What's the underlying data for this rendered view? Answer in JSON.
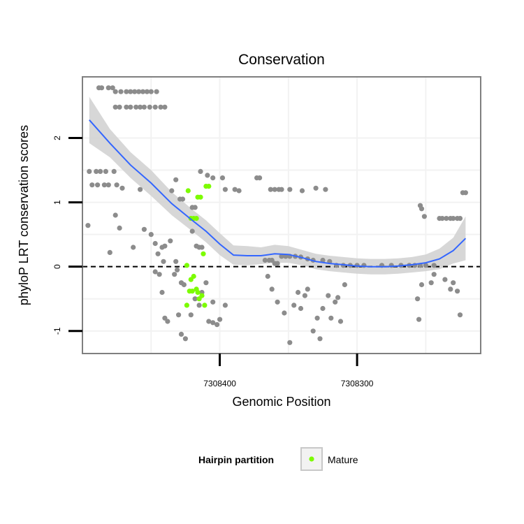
{
  "chart_data": {
    "type": "scatter",
    "title": "Conservation",
    "xlabel": "Genomic Position",
    "ylabel": "phyloP LRT conservation scores",
    "x_reversed": true,
    "xlim": [
      7308500,
      7308210
    ],
    "ylim": [
      -1.35,
      2.95
    ],
    "x_ticks": [
      7308400,
      7308300
    ],
    "x_tick_labels": [
      "7308400",
      "7308300"
    ],
    "y_ticks": [
      -1,
      0,
      1,
      2
    ],
    "y_tick_labels": [
      "-1",
      "0",
      "1",
      "2"
    ],
    "reference_line": {
      "y": 0,
      "style": "dashed"
    },
    "grid": true,
    "colors": {
      "background_points": "#8c8c8c",
      "mature_points": "#7cfc00",
      "smooth_line": "#3366ff",
      "confidence_band": "#d3d3d3",
      "panel_border": "#7f7f7f"
    },
    "legend": {
      "title": "Hairpin partition",
      "placement": "bottom",
      "entries": [
        {
          "label": "Mature",
          "color": "#7cfc00"
        }
      ]
    },
    "series": [
      {
        "role": "other",
        "color": "#8c8c8c",
        "points": [
          [
            7308488,
            2.78
          ],
          [
            7308486,
            2.78
          ],
          [
            7308481,
            2.78
          ],
          [
            7308478,
            2.78
          ],
          [
            7308476,
            2.72
          ],
          [
            7308472,
            2.72
          ],
          [
            7308468,
            2.72
          ],
          [
            7308465,
            2.72
          ],
          [
            7308462,
            2.72
          ],
          [
            7308459,
            2.72
          ],
          [
            7308456,
            2.72
          ],
          [
            7308453,
            2.72
          ],
          [
            7308450,
            2.72
          ],
          [
            7308446,
            2.72
          ],
          [
            7308476,
            2.48
          ],
          [
            7308473,
            2.48
          ],
          [
            7308468,
            2.48
          ],
          [
            7308465,
            2.48
          ],
          [
            7308461,
            2.48
          ],
          [
            7308458,
            2.48
          ],
          [
            7308455,
            2.48
          ],
          [
            7308451,
            2.48
          ],
          [
            7308447,
            2.48
          ],
          [
            7308443,
            2.48
          ],
          [
            7308440,
            2.48
          ],
          [
            7308495,
            1.48
          ],
          [
            7308490,
            1.48
          ],
          [
            7308487,
            1.48
          ],
          [
            7308483,
            1.48
          ],
          [
            7308477,
            1.48
          ],
          [
            7308493,
            1.27
          ],
          [
            7308489,
            1.27
          ],
          [
            7308484,
            1.27
          ],
          [
            7308481,
            1.27
          ],
          [
            7308475,
            1.27
          ],
          [
            7308496,
            0.64
          ],
          [
            7308471,
            1.22
          ],
          [
            7308458,
            1.2
          ],
          [
            7308476,
            0.8
          ],
          [
            7308473,
            0.6
          ],
          [
            7308480,
            0.22
          ],
          [
            7308463,
            0.3
          ],
          [
            7308455,
            0.58
          ],
          [
            7308450,
            0.5
          ],
          [
            7308447,
            0.36
          ],
          [
            7308442,
            0.3
          ],
          [
            7308440,
            0.32
          ],
          [
            7308436,
            0.4
          ],
          [
            7308432,
            0.08
          ],
          [
            7308445,
            0.2
          ],
          [
            7308441,
            0.08
          ],
          [
            7308447,
            -0.08
          ],
          [
            7308444,
            -0.12
          ],
          [
            7308442,
            -0.4
          ],
          [
            7308435,
            1.18
          ],
          [
            7308432,
            1.35
          ],
          [
            7308429,
            1.05
          ],
          [
            7308427,
            1.05
          ],
          [
            7308420,
            0.92
          ],
          [
            7308418,
            0.92
          ],
          [
            7308414,
            1.48
          ],
          [
            7308409,
            1.42
          ],
          [
            7308405,
            1.38
          ],
          [
            7308420,
            0.55
          ],
          [
            7308417,
            0.32
          ],
          [
            7308415,
            0.3
          ],
          [
            7308413,
            0.3
          ],
          [
            7308433,
            -0.12
          ],
          [
            7308431,
            -0.05
          ],
          [
            7308428,
            -0.25
          ],
          [
            7308426,
            -0.28
          ],
          [
            7308440,
            -0.8
          ],
          [
            7308438,
            -0.85
          ],
          [
            7308430,
            -0.75
          ],
          [
            7308428,
            -1.05
          ],
          [
            7308425,
            -1.12
          ],
          [
            7308421,
            -0.75
          ],
          [
            7308418,
            -0.5
          ],
          [
            7308415,
            -0.6
          ],
          [
            7308413,
            -0.4
          ],
          [
            7308410,
            -0.25
          ],
          [
            7308408,
            -0.85
          ],
          [
            7308405,
            -0.87
          ],
          [
            7308400,
            -0.82
          ],
          [
            7308405,
            -0.55
          ],
          [
            7308402,
            -0.9
          ],
          [
            7308396,
            -0.6
          ],
          [
            7308398,
            1.38
          ],
          [
            7308396,
            1.2
          ],
          [
            7308389,
            1.2
          ],
          [
            7308386,
            1.18
          ],
          [
            7308373,
            1.38
          ],
          [
            7308371,
            1.38
          ],
          [
            7308363,
            1.2
          ],
          [
            7308360,
            1.2
          ],
          [
            7308357,
            1.2
          ],
          [
            7308355,
            1.2
          ],
          [
            7308349,
            1.2
          ],
          [
            7308340,
            1.18
          ],
          [
            7308330,
            1.22
          ],
          [
            7308323,
            1.2
          ],
          [
            7308355,
            0.16
          ],
          [
            7308352,
            0.16
          ],
          [
            7308349,
            0.16
          ],
          [
            7308345,
            0.16
          ],
          [
            7308341,
            0.15
          ],
          [
            7308336,
            0.12
          ],
          [
            7308332,
            0.1
          ],
          [
            7308325,
            0.1
          ],
          [
            7308320,
            0.08
          ],
          [
            7308315,
            0.02
          ],
          [
            7308310,
            0.02
          ],
          [
            7308305,
            0.02
          ],
          [
            7308300,
            0.02
          ],
          [
            7308295,
            0.02
          ],
          [
            7308367,
            0.1
          ],
          [
            7308364,
            0.1
          ],
          [
            7308362,
            0.1
          ],
          [
            7308360,
            0.05
          ],
          [
            7308358,
            0.05
          ],
          [
            7308365,
            -0.15
          ],
          [
            7308362,
            -0.35
          ],
          [
            7308358,
            -0.55
          ],
          [
            7308353,
            -0.72
          ],
          [
            7308349,
            -1.18
          ],
          [
            7308346,
            -0.6
          ],
          [
            7308343,
            -0.4
          ],
          [
            7308341,
            -0.65
          ],
          [
            7308338,
            -0.45
          ],
          [
            7308336,
            -0.35
          ],
          [
            7308332,
            -1.0
          ],
          [
            7308329,
            -0.8
          ],
          [
            7308327,
            -1.12
          ],
          [
            7308325,
            -0.65
          ],
          [
            7308321,
            -0.45
          ],
          [
            7308319,
            -0.8
          ],
          [
            7308316,
            -0.55
          ],
          [
            7308314,
            -0.48
          ],
          [
            7308312,
            -0.85
          ],
          [
            7308309,
            -0.28
          ],
          [
            7308282,
            0.02
          ],
          [
            7308275,
            0.02
          ],
          [
            7308268,
            0.02
          ],
          [
            7308262,
            0.02
          ],
          [
            7308258,
            0.02
          ],
          [
            7308254,
            0.02
          ],
          [
            7308250,
            0.02
          ],
          [
            7308244,
            0.02
          ],
          [
            7308254,
            0.95
          ],
          [
            7308253,
            0.9
          ],
          [
            7308251,
            0.78
          ],
          [
            7308256,
            -0.5
          ],
          [
            7308255,
            -0.82
          ],
          [
            7308253,
            -0.28
          ],
          [
            7308246,
            -0.25
          ],
          [
            7308244,
            -0.12
          ],
          [
            7308240,
            0.75
          ],
          [
            7308238,
            0.75
          ],
          [
            7308235,
            0.75
          ],
          [
            7308232,
            0.75
          ],
          [
            7308230,
            0.75
          ],
          [
            7308227,
            0.75
          ],
          [
            7308225,
            0.75
          ],
          [
            7308236,
            -0.2
          ],
          [
            7308232,
            -0.35
          ],
          [
            7308230,
            -0.25
          ],
          [
            7308227,
            -0.38
          ],
          [
            7308225,
            -0.75
          ],
          [
            7308223,
            1.15
          ],
          [
            7308221,
            1.15
          ]
        ]
      },
      {
        "role": "mature",
        "name": "Mature",
        "color": "#7cfc00",
        "points": [
          [
            7308423,
            1.18
          ],
          [
            7308421,
            0.75
          ],
          [
            7308419,
            0.75
          ],
          [
            7308417,
            0.75
          ],
          [
            7308416,
            1.08
          ],
          [
            7308414,
            1.08
          ],
          [
            7308412,
            0.2
          ],
          [
            7308410,
            1.25
          ],
          [
            7308408,
            1.25
          ],
          [
            7308424,
            0.02
          ],
          [
            7308421,
            -0.2
          ],
          [
            7308419,
            -0.15
          ],
          [
            7308417,
            -0.35
          ],
          [
            7308415,
            -0.5
          ],
          [
            7308413,
            -0.45
          ],
          [
            7308411,
            -0.6
          ],
          [
            7308424,
            -0.6
          ],
          [
            7308422,
            -0.38
          ],
          [
            7308420,
            -0.38
          ],
          [
            7308416,
            -0.4
          ]
        ]
      }
    ],
    "smooth": {
      "method": "loess",
      "x": [
        7308495,
        7308480,
        7308465,
        7308450,
        7308435,
        7308420,
        7308410,
        7308400,
        7308390,
        7308380,
        7308370,
        7308360,
        7308350,
        7308340,
        7308330,
        7308320,
        7308310,
        7308300,
        7308290,
        7308280,
        7308270,
        7308260,
        7308250,
        7308240,
        7308230,
        7308221
      ],
      "y": [
        2.28,
        1.92,
        1.58,
        1.3,
        0.98,
        0.72,
        0.55,
        0.35,
        0.18,
        0.17,
        0.17,
        0.2,
        0.19,
        0.14,
        0.08,
        0.05,
        0.03,
        0.01,
        0.0,
        0.0,
        0.01,
        0.03,
        0.06,
        0.12,
        0.25,
        0.44
      ],
      "lower": [
        1.92,
        1.7,
        1.38,
        1.1,
        0.8,
        0.55,
        0.38,
        0.18,
        0.03,
        0.02,
        0.04,
        0.06,
        0.06,
        0.02,
        -0.04,
        -0.07,
        -0.09,
        -0.11,
        -0.12,
        -0.12,
        -0.11,
        -0.09,
        -0.07,
        -0.04,
        0.05,
        0.1
      ],
      "upper": [
        2.64,
        2.14,
        1.78,
        1.5,
        1.16,
        0.89,
        0.72,
        0.52,
        0.33,
        0.32,
        0.3,
        0.34,
        0.32,
        0.26,
        0.2,
        0.17,
        0.15,
        0.13,
        0.12,
        0.12,
        0.13,
        0.15,
        0.19,
        0.28,
        0.45,
        0.78
      ]
    }
  }
}
